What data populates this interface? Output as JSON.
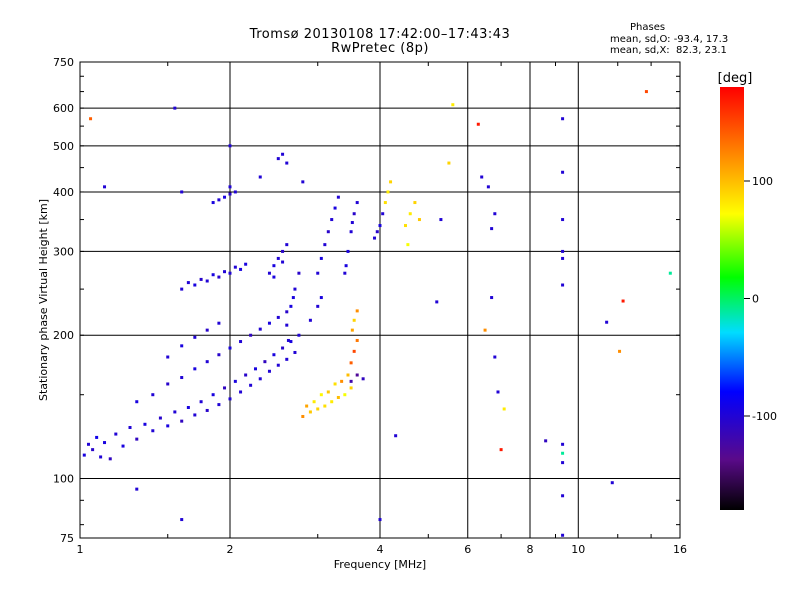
{
  "header": {
    "title_line1": "Tromsø 20130108 17:42:00–17:43:43",
    "title_line2": "RwPretec (8p)",
    "phases_title": "Phases",
    "phases_o": "mean, sd,O: -93.4, 17.3",
    "phases_x": "mean, sd,X:  82.3, 23.1"
  },
  "chart_data": {
    "type": "scatter",
    "xlabel": "Frequency [MHz]",
    "ylabel": "Stationary phase Virtual Height [km]",
    "xscale": "log",
    "yscale": "log",
    "xlim": [
      1,
      16
    ],
    "ylim": [
      75,
      750
    ],
    "xticks": [
      1,
      2,
      4,
      6,
      8,
      10,
      16
    ],
    "yticks": [
      75,
      100,
      200,
      300,
      400,
      500,
      600,
      750
    ],
    "grid": true,
    "colorbar": {
      "label": "[deg]",
      "range": [
        -180,
        180
      ],
      "ticks": [
        100,
        0,
        -100
      ],
      "colormap": "rainbow"
    },
    "points": [
      [
        1.02,
        112,
        -95
      ],
      [
        1.04,
        118,
        -100
      ],
      [
        1.06,
        115,
        -105
      ],
      [
        1.08,
        122,
        -90
      ],
      [
        1.1,
        111,
        -100
      ],
      [
        1.12,
        119,
        -95
      ],
      [
        1.15,
        110,
        -110
      ],
      [
        1.18,
        124,
        -100
      ],
      [
        1.22,
        117,
        -95
      ],
      [
        1.26,
        128,
        -100
      ],
      [
        1.3,
        121,
        -110
      ],
      [
        1.35,
        130,
        -95
      ],
      [
        1.4,
        126,
        -100
      ],
      [
        1.45,
        134,
        -105
      ],
      [
        1.5,
        129,
        -95
      ],
      [
        1.55,
        138,
        -100
      ],
      [
        1.6,
        132,
        -110
      ],
      [
        1.65,
        141,
        -95
      ],
      [
        1.7,
        136,
        -100
      ],
      [
        1.75,
        145,
        -100
      ],
      [
        1.8,
        139,
        -105
      ],
      [
        1.85,
        150,
        -95
      ],
      [
        1.9,
        143,
        -100
      ],
      [
        1.95,
        155,
        -110
      ],
      [
        2.0,
        147,
        -100
      ],
      [
        2.05,
        160,
        -95
      ],
      [
        2.1,
        152,
        -100
      ],
      [
        2.15,
        165,
        -105
      ],
      [
        2.2,
        157,
        -100
      ],
      [
        2.25,
        170,
        -95
      ],
      [
        2.3,
        162,
        -100
      ],
      [
        2.35,
        176,
        -110
      ],
      [
        2.4,
        168,
        -100
      ],
      [
        2.45,
        182,
        -95
      ],
      [
        2.5,
        173,
        -100
      ],
      [
        2.55,
        188,
        -105
      ],
      [
        2.6,
        178,
        -100
      ],
      [
        2.65,
        194,
        -95
      ],
      [
        2.7,
        184,
        -100
      ],
      [
        2.75,
        200,
        -100
      ],
      [
        1.3,
        145,
        -95
      ],
      [
        1.4,
        150,
        -100
      ],
      [
        1.5,
        158,
        -105
      ],
      [
        1.6,
        163,
        -100
      ],
      [
        1.7,
        170,
        -95
      ],
      [
        1.8,
        176,
        -100
      ],
      [
        1.9,
        182,
        -105
      ],
      [
        2.0,
        188,
        -95
      ],
      [
        2.1,
        194,
        -100
      ],
      [
        2.2,
        200,
        -110
      ],
      [
        2.3,
        206,
        -100
      ],
      [
        2.4,
        212,
        -95
      ],
      [
        2.5,
        218,
        -100
      ],
      [
        2.6,
        224,
        -105
      ],
      [
        1.5,
        180,
        -100
      ],
      [
        1.6,
        190,
        -95
      ],
      [
        1.7,
        198,
        -100
      ],
      [
        1.8,
        205,
        -105
      ],
      [
        1.9,
        212,
        -100
      ],
      [
        1.6,
        250,
        -100
      ],
      [
        1.7,
        255,
        -95
      ],
      [
        1.8,
        260,
        -100
      ],
      [
        1.9,
        265,
        -105
      ],
      [
        2.0,
        270,
        -100
      ],
      [
        2.1,
        275,
        -95
      ],
      [
        1.65,
        258,
        -100
      ],
      [
        1.75,
        262,
        -105
      ],
      [
        1.85,
        268,
        -95
      ],
      [
        1.95,
        272,
        -100
      ],
      [
        2.05,
        278,
        -100
      ],
      [
        2.15,
        282,
        -95
      ],
      [
        1.9,
        385,
        -100
      ],
      [
        1.95,
        390,
        -95
      ],
      [
        2.0,
        396,
        -105
      ],
      [
        2.05,
        400,
        -100
      ],
      [
        1.85,
        380,
        -95
      ],
      [
        2.0,
        410,
        -100
      ],
      [
        2.4,
        270,
        -100
      ],
      [
        2.45,
        280,
        -95
      ],
      [
        2.5,
        290,
        -100
      ],
      [
        2.55,
        300,
        -105
      ],
      [
        2.6,
        310,
        -100
      ],
      [
        2.45,
        265,
        -95
      ],
      [
        2.55,
        285,
        -100
      ],
      [
        2.6,
        210,
        -100
      ],
      [
        2.65,
        230,
        -95
      ],
      [
        2.7,
        250,
        -100
      ],
      [
        2.75,
        270,
        -105
      ],
      [
        2.62,
        195,
        -100
      ],
      [
        2.68,
        240,
        -95
      ],
      [
        3.0,
        270,
        -100
      ],
      [
        3.05,
        290,
        -95
      ],
      [
        3.1,
        310,
        -100
      ],
      [
        3.15,
        330,
        -105
      ],
      [
        3.2,
        350,
        -100
      ],
      [
        3.25,
        370,
        -95
      ],
      [
        3.3,
        390,
        -100
      ],
      [
        3.4,
        270,
        -100
      ],
      [
        3.45,
        300,
        -95
      ],
      [
        3.5,
        330,
        -100
      ],
      [
        3.55,
        360,
        -105
      ],
      [
        3.6,
        380,
        -100
      ],
      [
        3.42,
        280,
        -95
      ],
      [
        3.52,
        345,
        -100
      ],
      [
        3.9,
        320,
        -100
      ],
      [
        4.0,
        340,
        -95
      ],
      [
        4.05,
        360,
        -100
      ],
      [
        3.95,
        330,
        -105
      ],
      [
        4.1,
        380,
        85
      ],
      [
        4.15,
        400,
        80
      ],
      [
        4.2,
        420,
        90
      ],
      [
        4.5,
        340,
        85
      ],
      [
        4.6,
        360,
        80
      ],
      [
        4.7,
        380,
        90
      ],
      [
        4.55,
        310,
        70
      ],
      [
        4.8,
        350,
        95
      ],
      [
        2.8,
        135,
        120
      ],
      [
        2.9,
        138,
        95
      ],
      [
        3.0,
        140,
        90
      ],
      [
        3.1,
        142,
        85
      ],
      [
        3.2,
        145,
        80
      ],
      [
        3.3,
        148,
        100
      ],
      [
        3.4,
        150,
        70
      ],
      [
        3.5,
        155,
        90
      ],
      [
        2.85,
        142,
        110
      ],
      [
        2.95,
        145,
        80
      ],
      [
        3.05,
        150,
        75
      ],
      [
        3.15,
        152,
        95
      ],
      [
        3.25,
        158,
        85
      ],
      [
        3.35,
        160,
        120
      ],
      [
        3.45,
        165,
        100
      ],
      [
        3.5,
        175,
        140
      ],
      [
        3.55,
        185,
        150
      ],
      [
        3.6,
        195,
        130
      ],
      [
        3.52,
        205,
        110
      ],
      [
        3.55,
        215,
        90
      ],
      [
        3.6,
        225,
        120
      ],
      [
        3.5,
        160,
        -120
      ],
      [
        3.6,
        165,
        -130
      ],
      [
        3.7,
        162,
        -110
      ],
      [
        3.0,
        230,
        -100
      ],
      [
        3.05,
        240,
        -95
      ],
      [
        2.9,
        215,
        -100
      ],
      [
        1.3,
        95,
        -100
      ],
      [
        1.6,
        82,
        -100
      ],
      [
        1.05,
        570,
        140
      ],
      [
        1.12,
        410,
        -100
      ],
      [
        1.55,
        600,
        -100
      ],
      [
        1.6,
        400,
        -100
      ],
      [
        2.0,
        500,
        -100
      ],
      [
        2.3,
        430,
        -100
      ],
      [
        2.5,
        470,
        -100
      ],
      [
        2.55,
        480,
        -100
      ],
      [
        2.8,
        420,
        -100
      ],
      [
        2.6,
        460,
        -100
      ],
      [
        5.6,
        610,
        80
      ],
      [
        5.5,
        460,
        90
      ],
      [
        6.3,
        555,
        170
      ],
      [
        6.4,
        430,
        -100
      ],
      [
        6.6,
        410,
        -100
      ],
      [
        6.7,
        335,
        -100
      ],
      [
        6.8,
        360,
        -100
      ],
      [
        6.5,
        205,
        120
      ],
      [
        6.7,
        240,
        -100
      ],
      [
        6.8,
        180,
        -100
      ],
      [
        6.9,
        152,
        -100
      ],
      [
        7.1,
        140,
        80
      ],
      [
        7.0,
        115,
        170
      ],
      [
        8.6,
        120,
        -110
      ],
      [
        9.3,
        570,
        -100
      ],
      [
        9.3,
        440,
        -100
      ],
      [
        9.3,
        350,
        -100
      ],
      [
        9.3,
        300,
        -100
      ],
      [
        9.3,
        290,
        -100
      ],
      [
        9.3,
        255,
        -100
      ],
      [
        9.3,
        118,
        -100
      ],
      [
        9.3,
        113,
        -10
      ],
      [
        9.3,
        108,
        -100
      ],
      [
        9.3,
        92,
        -100
      ],
      [
        9.3,
        76,
        -100
      ],
      [
        11.4,
        213,
        -100
      ],
      [
        11.7,
        98,
        -100
      ],
      [
        12.3,
        236,
        170
      ],
      [
        12.1,
        185,
        120
      ],
      [
        13.7,
        650,
        150
      ],
      [
        15.3,
        270,
        -10
      ],
      [
        4.0,
        82,
        -100
      ],
      [
        5.2,
        235,
        -100
      ],
      [
        5.3,
        350,
        -100
      ],
      [
        4.3,
        123,
        -100
      ]
    ]
  }
}
